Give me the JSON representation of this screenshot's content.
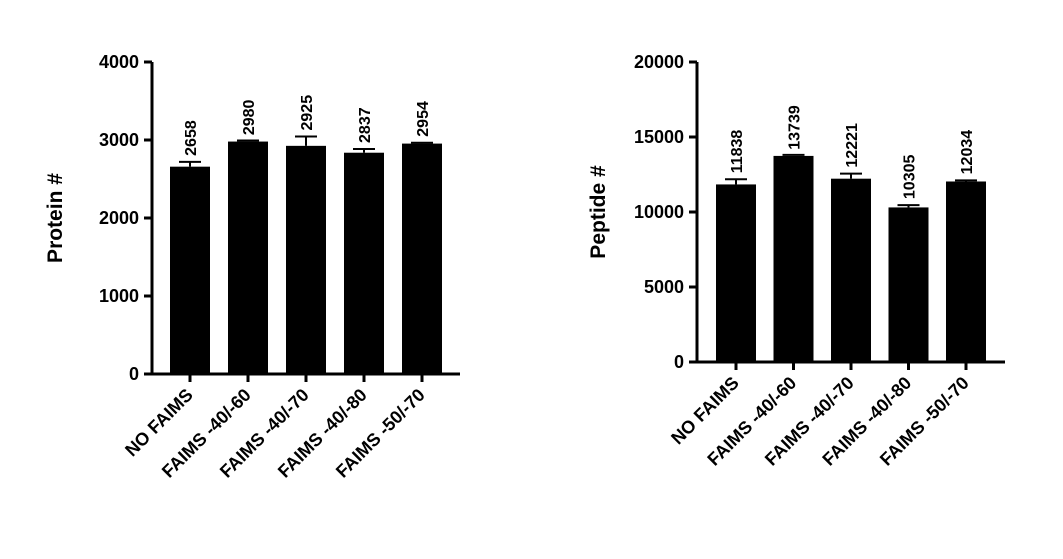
{
  "chart_data": [
    {
      "type": "bar",
      "title": "",
      "xlabel": "",
      "ylabel": "Protein #",
      "ylim": [
        0,
        4000
      ],
      "yticks": [
        "0",
        "1000",
        "2000",
        "3000",
        "4000"
      ],
      "ytick_values": [
        0,
        1000,
        2000,
        3000,
        4000
      ],
      "categories": [
        "NO FAIMS",
        "FAIMS -40/-60",
        "FAIMS -40/-70",
        "FAIMS -40/-80",
        "FAIMS -50/-70"
      ],
      "values": [
        2658,
        2980,
        2925,
        2837,
        2954
      ],
      "error_upper": [
        2720,
        2985,
        3045,
        2885,
        2965
      ],
      "data_labels": [
        "2658",
        "2980",
        "2925",
        "2837",
        "2954"
      ],
      "bar_color": "#000000",
      "grid": false,
      "legend": "none"
    },
    {
      "type": "bar",
      "title": "",
      "xlabel": "",
      "ylabel": "Peptide #",
      "ylim": [
        0,
        20000
      ],
      "yticks": [
        "0",
        "5000",
        "10000",
        "15000",
        "20000"
      ],
      "ytick_values": [
        0,
        5000,
        10000,
        15000,
        20000
      ],
      "categories": [
        "NO FAIMS",
        "FAIMS -40/-60",
        "FAIMS -40/-70",
        "FAIMS -40/-80",
        "FAIMS -50/-70"
      ],
      "values": [
        11838,
        13739,
        12221,
        10305,
        12034
      ],
      "error_upper": [
        12180,
        13750,
        12560,
        10460,
        12110
      ],
      "data_labels": [
        "11838",
        "13739",
        "12221",
        "10305",
        "12034"
      ],
      "bar_color": "#000000",
      "grid": false,
      "legend": "none"
    }
  ]
}
